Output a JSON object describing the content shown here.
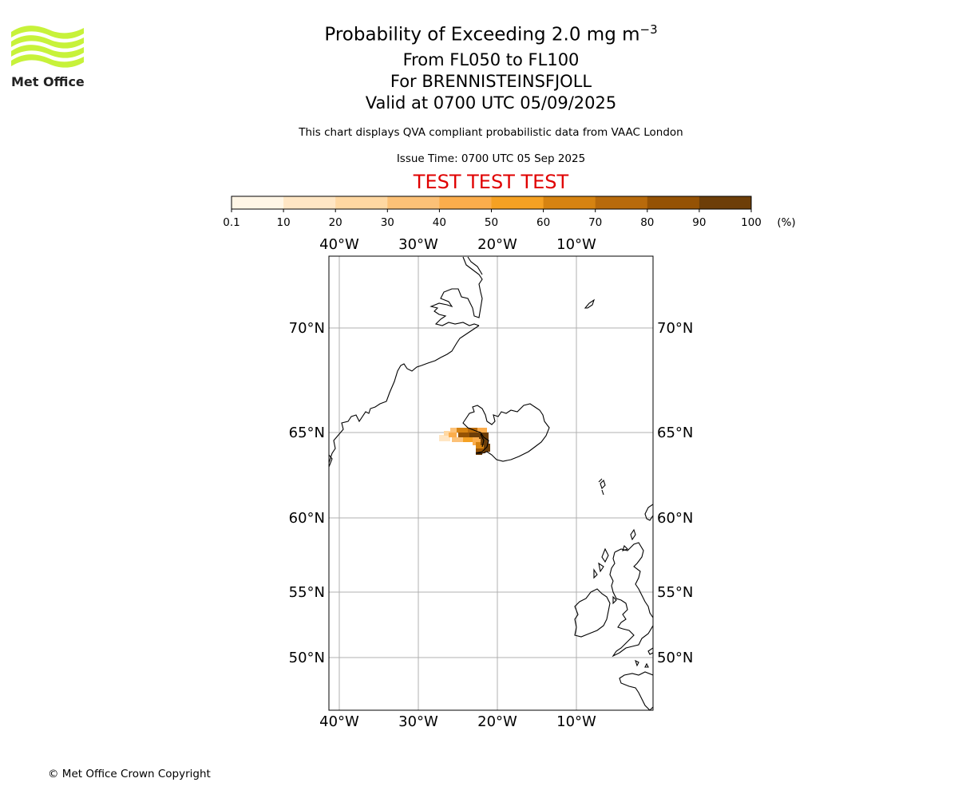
{
  "header": {
    "title_main": "Probability of Exceeding 2.0 mg m",
    "title_exp": "−3",
    "levels": "From FL050 to FL100",
    "volcano": "For BRENNISTEINSFJOLL",
    "valid": "Valid at 0700 UTC 05/09/2025",
    "description": "This chart displays QVA compliant probabilistic data from VAAC London",
    "issue_time": "Issue Time: 0700 UTC 05 Sep 2025",
    "test_banner": "TEST TEST TEST"
  },
  "logo": {
    "text": "Met Office",
    "color": "#c7f23a"
  },
  "colorbar": {
    "ticks": [
      "0.1",
      "10",
      "20",
      "30",
      "40",
      "50",
      "60",
      "70",
      "80",
      "90",
      "100"
    ],
    "unit": "(%)",
    "colors": [
      "#fff6e6",
      "#ffe6c4",
      "#ffd8a2",
      "#fcc177",
      "#fbad4c",
      "#f5a123",
      "#d68311",
      "#b86a0b",
      "#955204",
      "#6d3e08"
    ]
  },
  "map": {
    "lon_labels": [
      "40°W",
      "30°W",
      "20°W",
      "10°W"
    ],
    "lat_labels": [
      "70°N",
      "65°N",
      "60°N",
      "55°N",
      "50°N"
    ],
    "lon_values": [
      -40,
      -30,
      -20,
      -10
    ],
    "lat_values": [
      70,
      65,
      60,
      55,
      50
    ],
    "grid": true,
    "line_color": "#000000",
    "grid_color": "#b0b0b0"
  },
  "footer": {
    "copyright": "© Met Office Crown Copyright"
  }
}
